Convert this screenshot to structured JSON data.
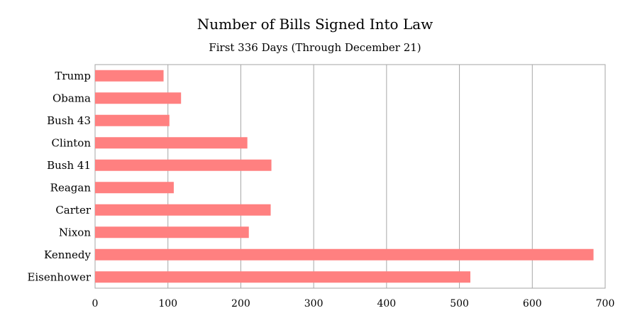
{
  "chart_data": {
    "type": "bar",
    "orientation": "horizontal",
    "title": "Number of Bills Signed Into Law",
    "subtitle": "First 336 Days (Through December 21)",
    "categories": [
      "Trump",
      "Obama",
      "Bush 43",
      "Clinton",
      "Bush 41",
      "Reagan",
      "Carter",
      "Nixon",
      "Kennedy",
      "Eisenhower"
    ],
    "values": [
      94,
      118,
      102,
      209,
      242,
      108,
      241,
      211,
      684,
      515
    ],
    "xlim": [
      0,
      700
    ],
    "xticks": [
      0,
      100,
      200,
      300,
      400,
      500,
      600,
      700
    ],
    "grid": "vertical",
    "bar_color": "#ff8080",
    "legend": "none"
  }
}
